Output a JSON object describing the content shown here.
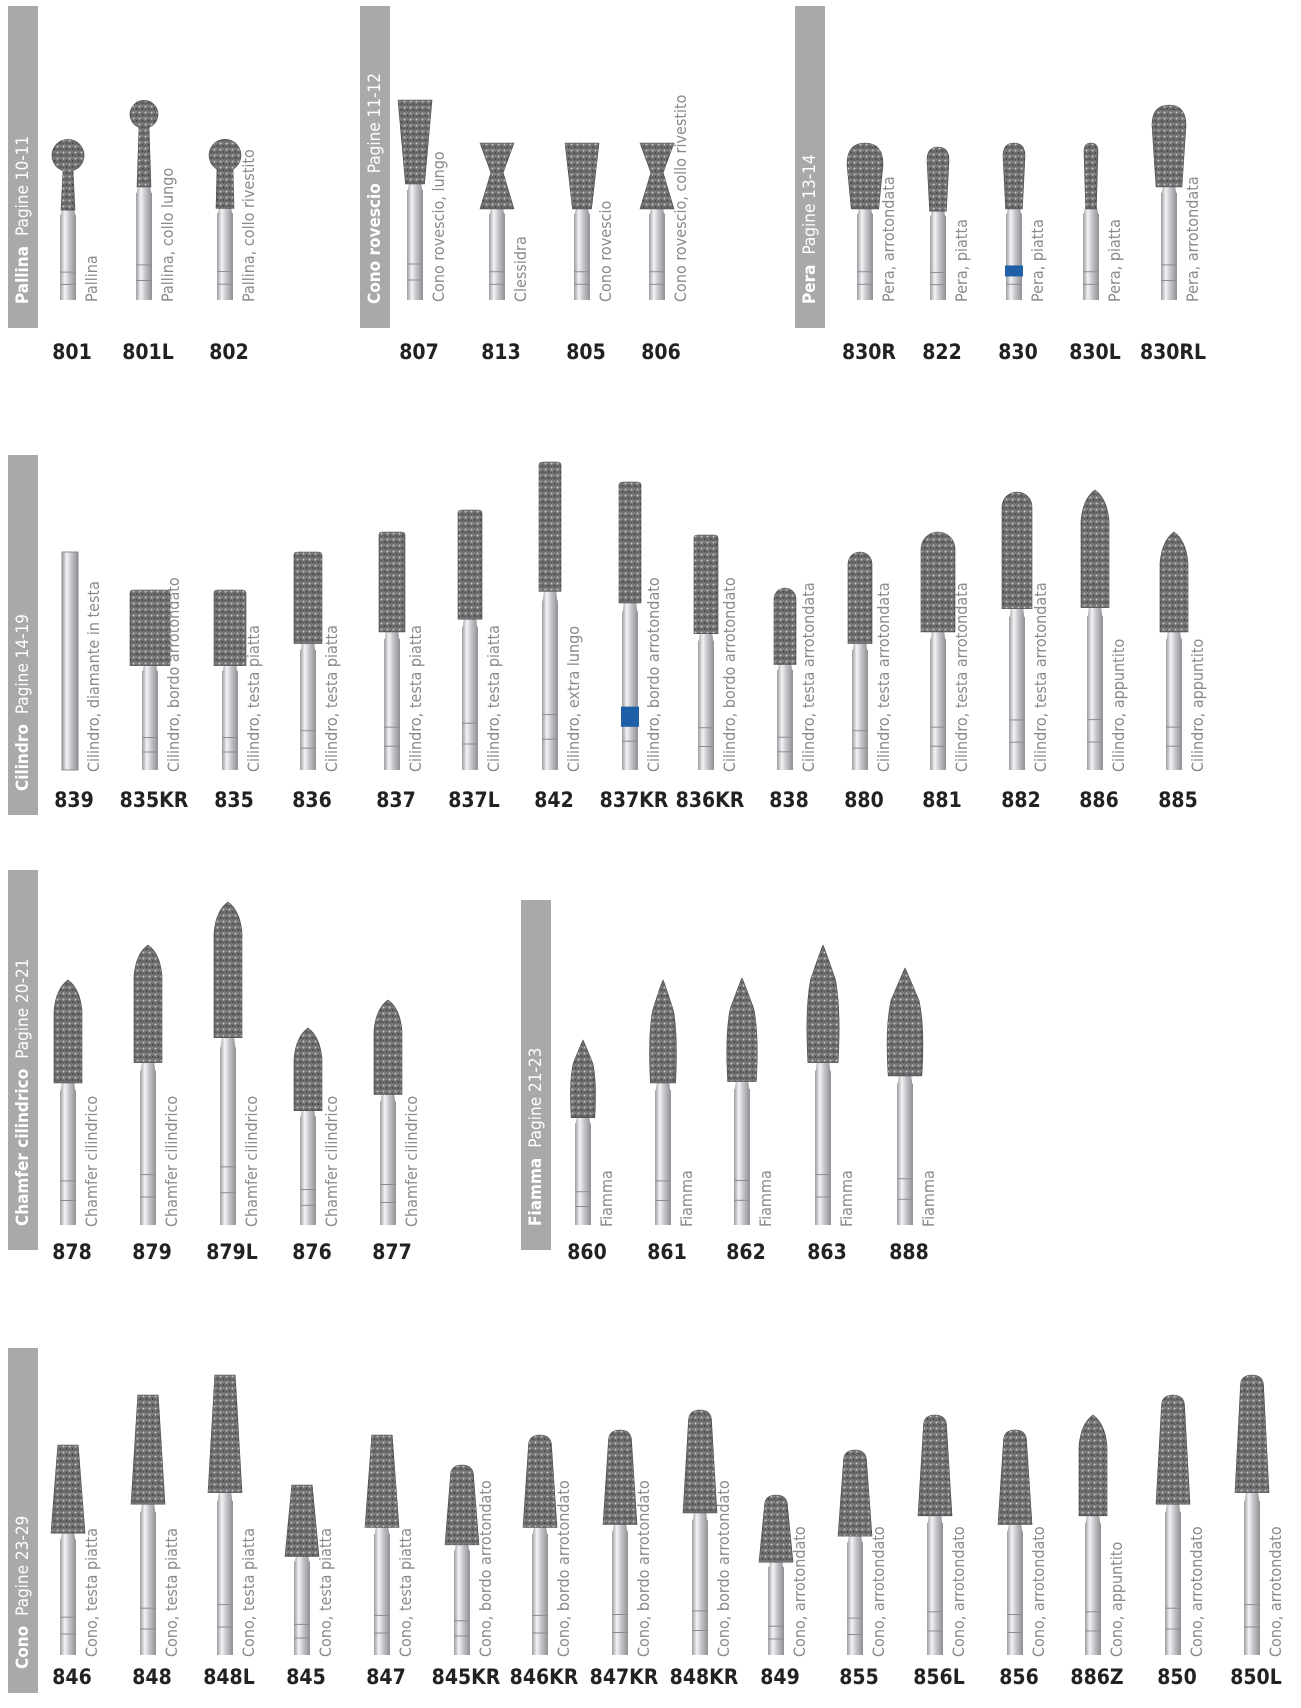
{
  "colors": {
    "bar": "#a9a9ab",
    "shank": "#d4d6d9",
    "grit": "#6e6e70",
    "blue_band": "#1f5fa8",
    "code": "#222222",
    "label": "#8a8a8a"
  },
  "sections": [
    {
      "key": "pallina",
      "title": "Pallina",
      "pages": "Pagine 10-11",
      "items": [
        {
          "code": "801",
          "label": "Pallina",
          "shape": "ball"
        },
        {
          "code": "801L",
          "label": "Pallina, collo lungo",
          "shape": "ball"
        },
        {
          "code": "802",
          "label": "Pallina, collo rivestito",
          "shape": "ball-coated"
        }
      ]
    },
    {
      "key": "cono-rovescio",
      "title": "Cono rovescio",
      "pages": "Pagine 11-12",
      "items": [
        {
          "code": "807",
          "label": "Cono rovescio, lungo",
          "shape": "inverted-cone"
        },
        {
          "code": "813",
          "label": "Clessidra",
          "shape": "hourglass"
        },
        {
          "code": "805",
          "label": "Cono rovescio",
          "shape": "inverted-cone"
        },
        {
          "code": "806",
          "label": "Cono rovescio, collo rivestito",
          "shape": "hourglass"
        }
      ]
    },
    {
      "key": "pera",
      "title": "Pera",
      "pages": "Pagine 13-14",
      "items": [
        {
          "code": "830R",
          "label": "Pera, arrotondata",
          "shape": "pear"
        },
        {
          "code": "822",
          "label": "Pera, piatta",
          "shape": "pear"
        },
        {
          "code": "830",
          "label": "Pera, piatta",
          "shape": "pear",
          "band": true
        },
        {
          "code": "830L",
          "label": "Pera, piatta",
          "shape": "pear"
        },
        {
          "code": "830RL",
          "label": "Pera, arrotondata",
          "shape": "pear"
        }
      ]
    },
    {
      "key": "cilindro",
      "title": "Cilindro",
      "pages": "Pagine 14-19",
      "items": [
        {
          "code": "839",
          "label": "Cilindro, diamante in testa",
          "shape": "plain"
        },
        {
          "code": "835KR",
          "label": "Cilindro, bordo arrotondato",
          "shape": "cylinder"
        },
        {
          "code": "835",
          "label": "Cilindro, testa piatta",
          "shape": "cylinder"
        },
        {
          "code": "836",
          "label": "Cilindro, testa piatta",
          "shape": "cylinder"
        },
        {
          "code": "837",
          "label": "Cilindro, testa piatta",
          "shape": "cylinder"
        },
        {
          "code": "837L",
          "label": "Cilindro, testa piatta",
          "shape": "cylinder"
        },
        {
          "code": "842",
          "label": "Cilindro, extra lungo",
          "shape": "cylinder"
        },
        {
          "code": "837KR",
          "label": "Cilindro, bordo arrotondato",
          "shape": "cylinder",
          "band": true
        },
        {
          "code": "836KR",
          "label": "Cilindro, bordo arrotondato",
          "shape": "cylinder"
        },
        {
          "code": "838",
          "label": "Cilindro, testa arrotondata",
          "shape": "round"
        },
        {
          "code": "880",
          "label": "Cilindro, testa arrotondata",
          "shape": "round"
        },
        {
          "code": "881",
          "label": "Cilindro, testa arrotondata",
          "shape": "round"
        },
        {
          "code": "882",
          "label": "Cilindro, testa arrotondata",
          "shape": "round"
        },
        {
          "code": "886",
          "label": "Cilindro, appuntito",
          "shape": "pointed"
        },
        {
          "code": "885",
          "label": "Cilindro, appuntito",
          "shape": "pointed"
        }
      ]
    },
    {
      "key": "chamfer",
      "title": "Chamfer cilindrico",
      "pages": "Pagine 20-21",
      "items": [
        {
          "code": "878",
          "label": "Chamfer cilindrico",
          "shape": "pointed"
        },
        {
          "code": "879",
          "label": "Chamfer cilindrico",
          "shape": "pointed"
        },
        {
          "code": "879L",
          "label": "Chamfer cilindrico",
          "shape": "pointed"
        },
        {
          "code": "876",
          "label": "Chamfer cilindrico",
          "shape": "pointed"
        },
        {
          "code": "877",
          "label": "Chamfer cilindrico",
          "shape": "pointed"
        }
      ]
    },
    {
      "key": "fiamma",
      "title": "Fiamma",
      "pages": "Pagine 21-23",
      "items": [
        {
          "code": "860",
          "label": "Fiamma",
          "shape": "flame"
        },
        {
          "code": "861",
          "label": "Fiamma",
          "shape": "flame"
        },
        {
          "code": "862",
          "label": "Fiamma",
          "shape": "flame"
        },
        {
          "code": "863",
          "label": "Fiamma",
          "shape": "flame"
        },
        {
          "code": "888",
          "label": "Fiamma",
          "shape": "flame"
        }
      ]
    },
    {
      "key": "cono",
      "title": "Cono",
      "pages": "Pagine 23-29",
      "items": [
        {
          "code": "846",
          "label": "Cono, testa piatta",
          "shape": "taper"
        },
        {
          "code": "848",
          "label": "Cono, testa piatta",
          "shape": "taper"
        },
        {
          "code": "848L",
          "label": "Cono, testa piatta",
          "shape": "taper"
        },
        {
          "code": "845",
          "label": "Cono, testa piatta",
          "shape": "taper"
        },
        {
          "code": "847",
          "label": "Cono, testa piatta",
          "shape": "taper"
        },
        {
          "code": "845KR",
          "label": "Cono, bordo arrotondato",
          "shape": "taper-round"
        },
        {
          "code": "846KR",
          "label": "Cono, bordo arrotondato",
          "shape": "taper-round"
        },
        {
          "code": "847KR",
          "label": "Cono, bordo arrotondato",
          "shape": "taper-round"
        },
        {
          "code": "848KR",
          "label": "Cono, bordo arrotondato",
          "shape": "taper-round"
        },
        {
          "code": "849",
          "label": "Cono, arrotondato",
          "shape": "taper-round"
        },
        {
          "code": "855",
          "label": "Cono, arrotondato",
          "shape": "taper-round"
        },
        {
          "code": "856L",
          "label": "Cono, arrotondato",
          "shape": "taper-round"
        },
        {
          "code": "856",
          "label": "Cono, arrotondato",
          "shape": "taper-round"
        },
        {
          "code": "886Z",
          "label": "Cono, appuntito",
          "shape": "pointed"
        },
        {
          "code": "850",
          "label": "Cono, arrotondato",
          "shape": "taper-round"
        },
        {
          "code": "850L",
          "label": "Cono, arrotondato",
          "shape": "taper-round"
        }
      ]
    }
  ]
}
